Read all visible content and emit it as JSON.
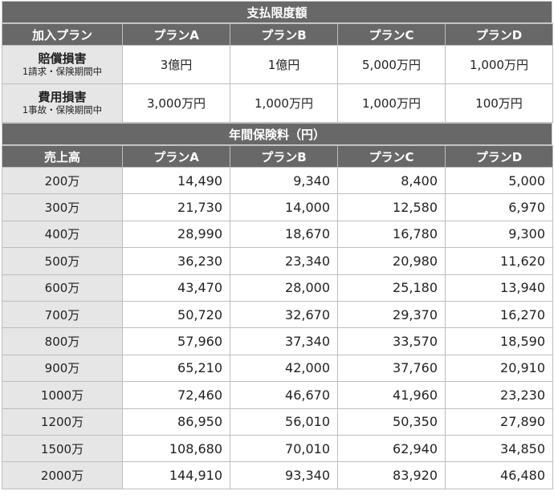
{
  "limits_title": "支払限度額",
  "limits_header": [
    "加入プラン",
    "プランA",
    "プランB",
    "プランC",
    "プランD"
  ],
  "limits_rows": [
    {
      "label": "賠償損害",
      "sub": "1請求・保険期間中",
      "values": [
        "3億円",
        "1億円",
        "5,000万円",
        "1,000万円"
      ]
    },
    {
      "label": "費用損害",
      "sub": "1事故・保険期間中",
      "values": [
        "3,000万円",
        "1,000万円",
        "1,000万円",
        "100万円"
      ]
    }
  ],
  "premium_title": "年間保険料（円）",
  "premium_header": [
    "売上高",
    "プランA",
    "プランB",
    "プランC",
    "プランD"
  ],
  "premium_rows": [
    {
      "sales": "200万",
      "values": [
        "14,490",
        "9,340",
        "8,400",
        "5,000"
      ]
    },
    {
      "sales": "300万",
      "values": [
        "21,730",
        "14,000",
        "12,580",
        "6,970"
      ]
    },
    {
      "sales": "400万",
      "values": [
        "28,990",
        "18,670",
        "16,780",
        "9,300"
      ]
    },
    {
      "sales": "500万",
      "values": [
        "36,230",
        "23,340",
        "20,980",
        "11,620"
      ]
    },
    {
      "sales": "600万",
      "values": [
        "43,470",
        "28,000",
        "25,180",
        "13,940"
      ]
    },
    {
      "sales": "700万",
      "values": [
        "50,720",
        "32,670",
        "29,370",
        "16,270"
      ]
    },
    {
      "sales": "800万",
      "values": [
        "57,960",
        "37,340",
        "33,570",
        "18,590"
      ]
    },
    {
      "sales": "900万",
      "values": [
        "65,210",
        "42,000",
        "37,760",
        "20,910"
      ]
    },
    {
      "sales": "1000万",
      "values": [
        "72,460",
        "46,670",
        "41,960",
        "23,230"
      ]
    },
    {
      "sales": "1200万",
      "values": [
        "86,950",
        "56,010",
        "50,350",
        "27,890"
      ]
    },
    {
      "sales": "1500万",
      "values": [
        "108,680",
        "70,010",
        "62,940",
        "34,850"
      ]
    },
    {
      "sales": "2000万",
      "values": [
        "144,910",
        "93,340",
        "83,920",
        "46,480"
      ]
    }
  ]
}
